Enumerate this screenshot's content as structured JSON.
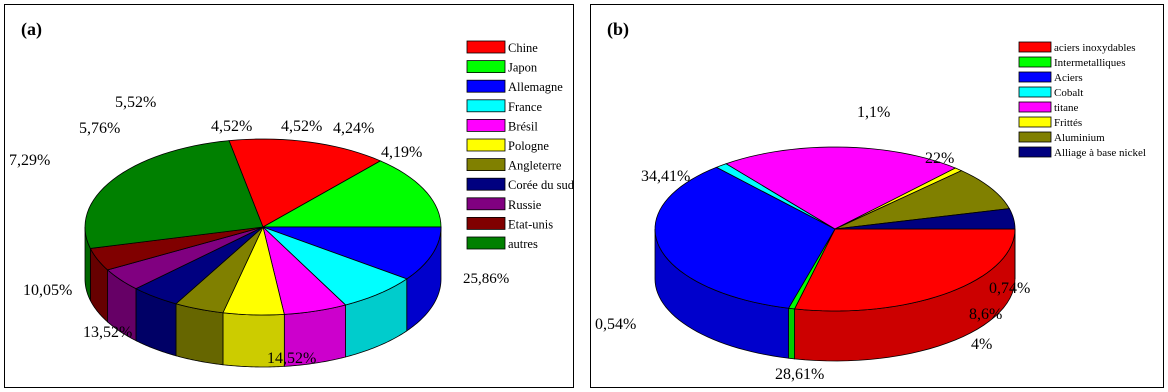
{
  "chart_data": [
    {
      "type": "pie",
      "panel_label": "(a)",
      "legend_position": "right",
      "categories": [
        "Chine",
        "Japon",
        "Allemagne",
        "France",
        "Brésil",
        "Pologne",
        "Angleterre",
        "Corée du sud",
        "Russie",
        "Etat-unis",
        "autres"
      ],
      "values": [
        14.52,
        13.52,
        10.05,
        7.29,
        5.76,
        5.52,
        4.52,
        4.52,
        4.24,
        4.19,
        25.86
      ],
      "value_labels": [
        "14,52%",
        "13,52%",
        "10,05%",
        "7,29%",
        "5,76%",
        "5,52%",
        "4,52%",
        "4,52%",
        "4,24%",
        "4,19%",
        "25,86%"
      ],
      "colors": [
        "#ff0000",
        "#00ff00",
        "#0000ff",
        "#00ffff",
        "#ff00ff",
        "#ffff00",
        "#808000",
        "#000080",
        "#800080",
        "#800000",
        "#008000"
      ]
    },
    {
      "type": "pie",
      "panel_label": "(b)",
      "legend_position": "top-right",
      "categories": [
        "aciers inoxydables",
        "Intermetalliques",
        "Aciers",
        "Cobalt",
        "titane",
        "Frittés",
        "Aluminium",
        "Alliage à base nickel"
      ],
      "values": [
        28.61,
        0.54,
        34.41,
        1.1,
        22,
        0.74,
        8.6,
        4
      ],
      "value_labels": [
        "28,61%",
        "0,54%",
        "34,41%",
        "1,1%",
        "22%",
        "0,74%",
        "8,6%",
        "4%"
      ],
      "colors": [
        "#ff0000",
        "#00ff00",
        "#0000ff",
        "#00ffff",
        "#ff00ff",
        "#ffff00",
        "#808000",
        "#000080"
      ]
    }
  ]
}
